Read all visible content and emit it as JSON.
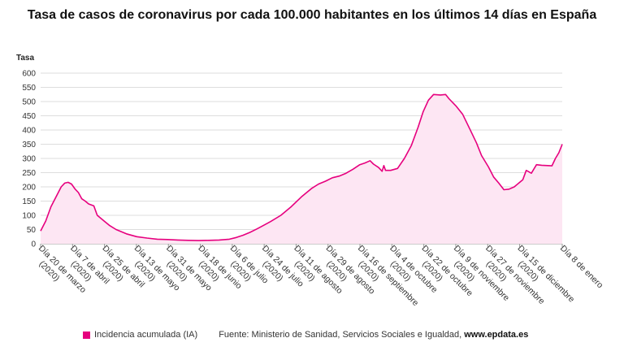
{
  "chart_data": {
    "type": "area",
    "title": "Tasa de casos de coronavirus por cada 100.000 habitantes en los últimos 14 días en España",
    "ylabel": "Tasa",
    "xlabel": "",
    "ylim": [
      0,
      600
    ],
    "yticks": [
      0,
      50,
      100,
      150,
      200,
      250,
      300,
      350,
      400,
      450,
      500,
      550,
      600
    ],
    "grid": "horizontal",
    "color": "#e6007e",
    "fill_color": "#fde6f3",
    "x_start": "2020-03-20",
    "x_end": "2021-01-08",
    "x_ticks": [
      {
        "day": 0,
        "label": [
          "Día 20 de marzo",
          "(2020)"
        ]
      },
      {
        "day": 18,
        "label": [
          "Día 7 de abril",
          "(2020)"
        ]
      },
      {
        "day": 36,
        "label": [
          "Día 25 de abril",
          "(2020)"
        ]
      },
      {
        "day": 54,
        "label": [
          "Día 13 de mayo",
          "(2020)"
        ]
      },
      {
        "day": 72,
        "label": [
          "Día 31 de mayo",
          "(2020)"
        ]
      },
      {
        "day": 90,
        "label": [
          "Día 18 de junio",
          "(2020)"
        ]
      },
      {
        "day": 108,
        "label": [
          "Día 6 de julio",
          "(2020)"
        ]
      },
      {
        "day": 126,
        "label": [
          "Día 24 de julio",
          "(2020)"
        ]
      },
      {
        "day": 144,
        "label": [
          "Día 11 de agosto",
          "(2020)"
        ]
      },
      {
        "day": 162,
        "label": [
          "Día 29 de agosto",
          "(2020)"
        ]
      },
      {
        "day": 180,
        "label": [
          "Día 16 de septiembre",
          "(2020)"
        ]
      },
      {
        "day": 198,
        "label": [
          "Día 4 de octubre",
          "(2020)"
        ]
      },
      {
        "day": 216,
        "label": [
          "Día 22 de octubre",
          "(2020)"
        ]
      },
      {
        "day": 234,
        "label": [
          "Día 9 de noviembre",
          "(2020)"
        ]
      },
      {
        "day": 252,
        "label": [
          "Día 27 de noviembre",
          "(2020)"
        ]
      },
      {
        "day": 270,
        "label": [
          "Día 15 de diciembre",
          "(2020)"
        ]
      },
      {
        "day": 294,
        "label": [
          "Día 8 de enero",
          ""
        ]
      }
    ],
    "series": [
      {
        "name": "Incidencia acumulada (IA)",
        "points": [
          [
            0,
            45
          ],
          [
            3,
            80
          ],
          [
            6,
            130
          ],
          [
            9,
            165
          ],
          [
            12,
            200
          ],
          [
            14,
            213
          ],
          [
            16,
            216
          ],
          [
            18,
            210
          ],
          [
            20,
            193
          ],
          [
            22,
            180
          ],
          [
            24,
            158
          ],
          [
            26,
            150
          ],
          [
            28,
            140
          ],
          [
            31,
            133
          ],
          [
            33,
            100
          ],
          [
            35,
            90
          ],
          [
            37,
            80
          ],
          [
            40,
            65
          ],
          [
            44,
            50
          ],
          [
            50,
            35
          ],
          [
            56,
            25
          ],
          [
            62,
            20
          ],
          [
            68,
            16
          ],
          [
            74,
            15
          ],
          [
            80,
            13
          ],
          [
            86,
            12
          ],
          [
            92,
            11
          ],
          [
            98,
            12
          ],
          [
            104,
            13
          ],
          [
            110,
            16
          ],
          [
            114,
            22
          ],
          [
            118,
            30
          ],
          [
            122,
            40
          ],
          [
            126,
            52
          ],
          [
            130,
            65
          ],
          [
            134,
            78
          ],
          [
            140,
            100
          ],
          [
            146,
            130
          ],
          [
            152,
            165
          ],
          [
            158,
            195
          ],
          [
            162,
            210
          ],
          [
            166,
            220
          ],
          [
            170,
            232
          ],
          [
            174,
            238
          ],
          [
            178,
            248
          ],
          [
            182,
            262
          ],
          [
            186,
            278
          ],
          [
            189,
            284
          ],
          [
            192,
            292
          ],
          [
            194,
            280
          ],
          [
            197,
            268
          ],
          [
            199,
            255
          ],
          [
            200,
            275
          ],
          [
            201,
            258
          ],
          [
            204,
            258
          ],
          [
            208,
            265
          ],
          [
            212,
            300
          ],
          [
            216,
            345
          ],
          [
            220,
            410
          ],
          [
            223,
            465
          ],
          [
            226,
            505
          ],
          [
            229,
            525
          ],
          [
            233,
            523
          ],
          [
            236,
            525
          ],
          [
            238,
            510
          ],
          [
            242,
            485
          ],
          [
            246,
            455
          ],
          [
            250,
            405
          ],
          [
            254,
            355
          ],
          [
            257,
            310
          ],
          [
            261,
            270
          ],
          [
            264,
            235
          ],
          [
            267,
            213
          ],
          [
            270,
            190
          ],
          [
            273,
            192
          ],
          [
            276,
            200
          ],
          [
            279,
            215
          ],
          [
            281,
            225
          ],
          [
            283,
            258
          ],
          [
            286,
            248
          ],
          [
            289,
            278
          ],
          [
            292,
            276
          ],
          [
            298,
            274
          ],
          [
            300,
            300
          ],
          [
            302,
            320
          ],
          [
            304,
            350
          ]
        ]
      }
    ],
    "legend": {
      "position": "bottom-left",
      "label": "Incidencia acumulada (IA)"
    }
  },
  "footer": {
    "source_prefix": "Fuente: Ministerio de Sanidad, Servicios Sociales e Igualdad, ",
    "source_site": "www.epdata.es"
  }
}
